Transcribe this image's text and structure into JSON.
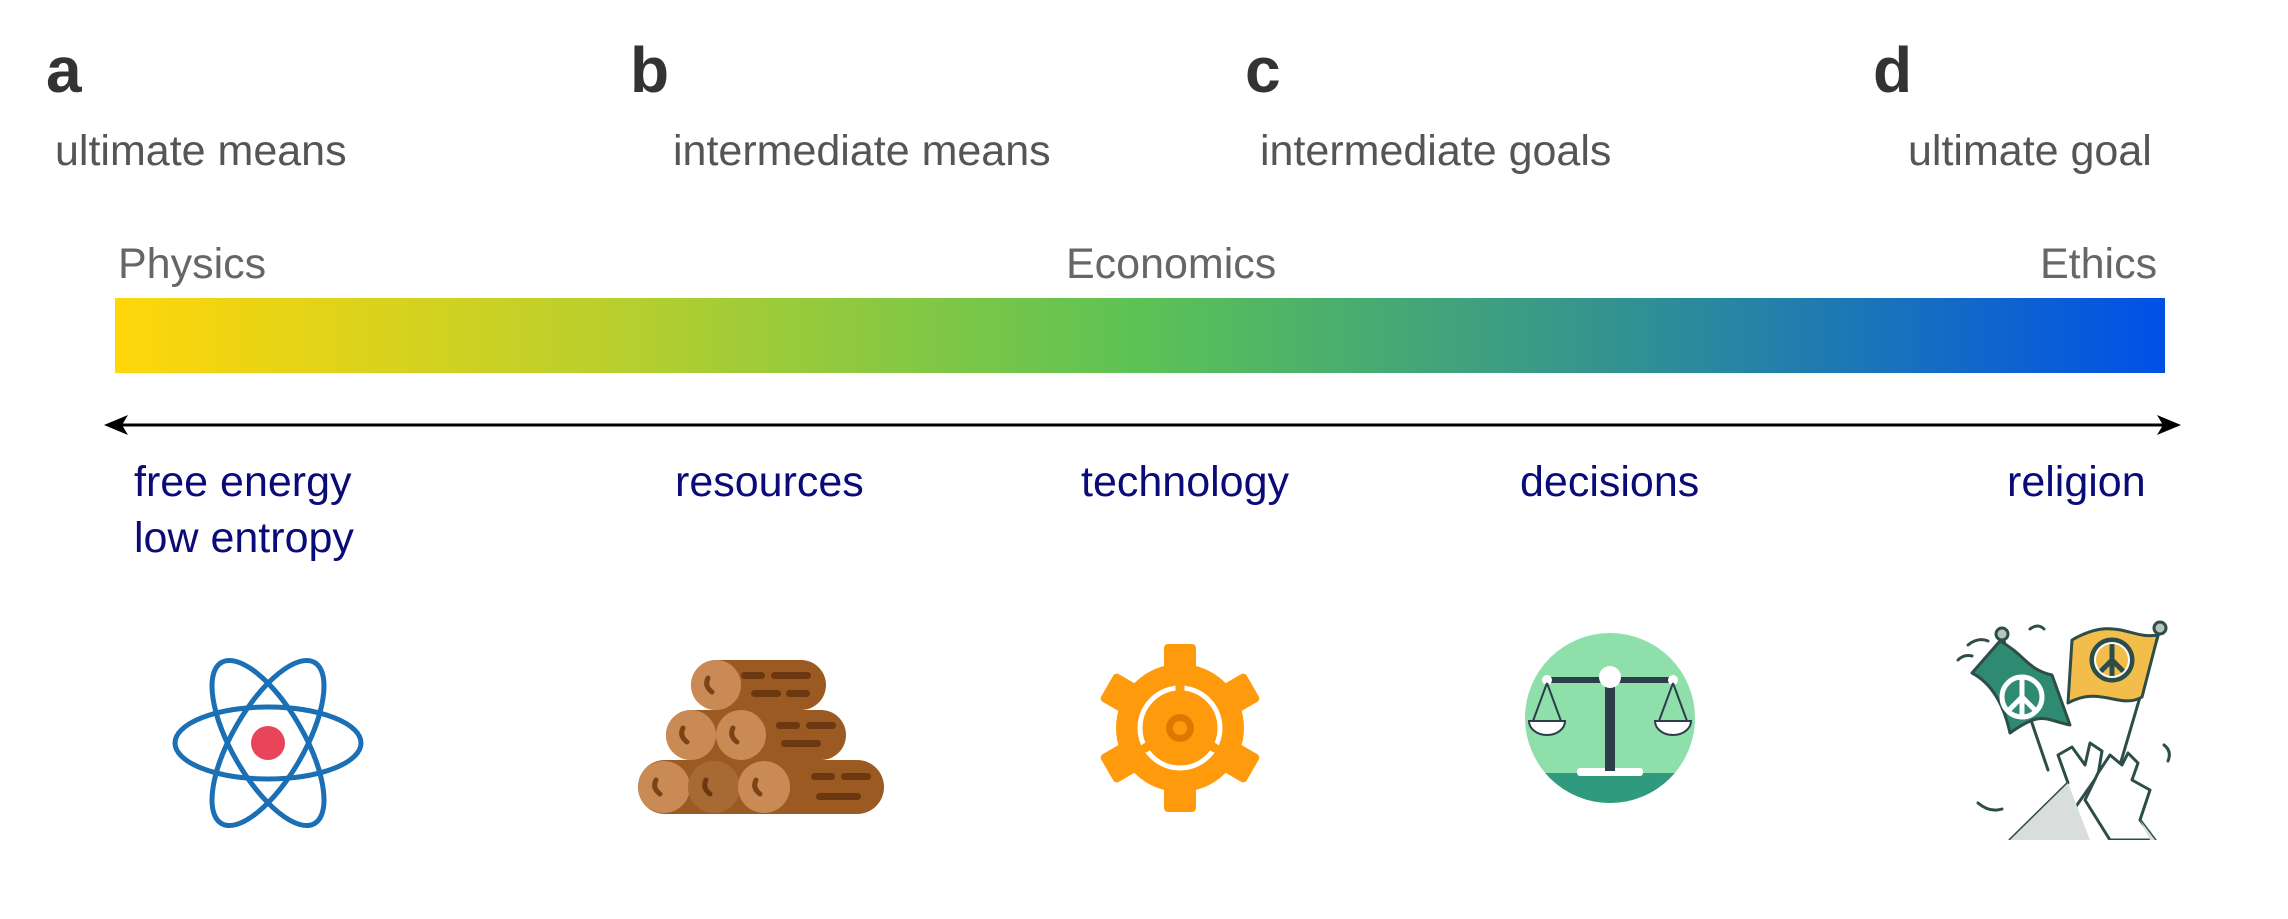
{
  "panels": [
    {
      "letter": "a",
      "subtitle": "ultimate means"
    },
    {
      "letter": "b",
      "subtitle": "intermediate means"
    },
    {
      "letter": "c",
      "subtitle": "intermediate goals"
    },
    {
      "letter": "d",
      "subtitle": "ultimate goal"
    }
  ],
  "scale": {
    "left": "Physics",
    "middle": "Economics",
    "right": "Ethics",
    "colors": [
      "#ffd60a",
      "#5cc255",
      "#0050e8"
    ]
  },
  "terms": [
    {
      "line1": "free energy",
      "line2": "low entropy",
      "icon": "atom-icon"
    },
    {
      "line1": "resources",
      "icon": "logs-icon"
    },
    {
      "line1": "technology",
      "icon": "gear-icon"
    },
    {
      "line1": "decisions",
      "icon": "scales-icon"
    },
    {
      "line1": "religion",
      "icon": "peace-flags-icon"
    }
  ]
}
